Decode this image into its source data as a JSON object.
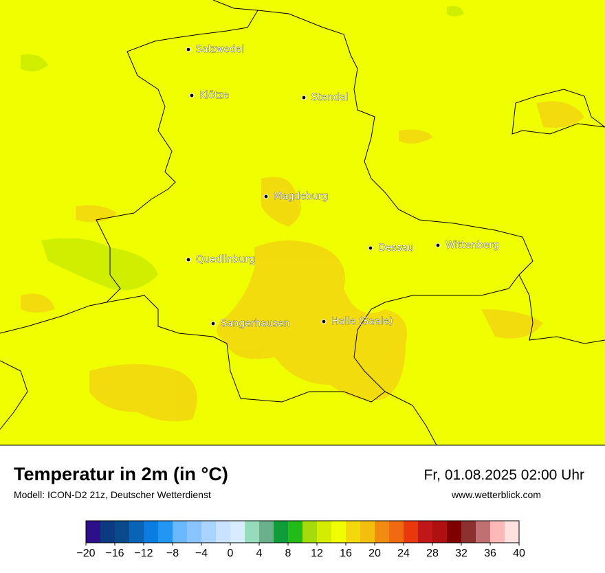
{
  "map": {
    "cities": [
      "Salzwedel",
      "Klötze",
      "Stendal",
      "Magdeburg",
      "Dessau",
      "Wittenberg",
      "Quedlinburg",
      "Sangerhausen",
      "Halle (Saale)"
    ],
    "background_color": "#f0ff00"
  },
  "footer": {
    "title": "Temperatur in 2m (in °C)",
    "subtitle": "Modell: ICON-D2 21z, Deutscher Wetterdienst",
    "datetime": "Fr, 01.08.2025 02:00 Uhr",
    "website": "www.wetterblick.com"
  },
  "colorbar": {
    "range": [
      -20,
      40
    ],
    "colors": [
      "#2e0f8a",
      "#0b3a80",
      "#0a4a8a",
      "#0b63b5",
      "#0a7ee0",
      "#2196f3",
      "#6ab8ff",
      "#8ac4ff",
      "#a8d4ff",
      "#c8e2ff",
      "#d8ebff",
      "#94dcbc",
      "#6ab08a",
      "#119c3a",
      "#22bb1a",
      "#a3dc0a",
      "#d4ec00",
      "#f0ff00",
      "#f3d80e",
      "#f3bf0e",
      "#f08c10",
      "#f06a10",
      "#e8380c",
      "#c01818",
      "#b01010",
      "#800000",
      "#8c3030",
      "#c07070",
      "#ffb8b8",
      "#ffe0e0"
    ],
    "ticks": [
      {
        "value": -20,
        "label": "−20"
      },
      {
        "value": -16,
        "label": "−16"
      },
      {
        "value": -12,
        "label": "−12"
      },
      {
        "value": -8,
        "label": "−8"
      },
      {
        "value": -4,
        "label": "−4"
      },
      0,
      4,
      8,
      12,
      16,
      20,
      24,
      28,
      32,
      36,
      40
    ]
  }
}
